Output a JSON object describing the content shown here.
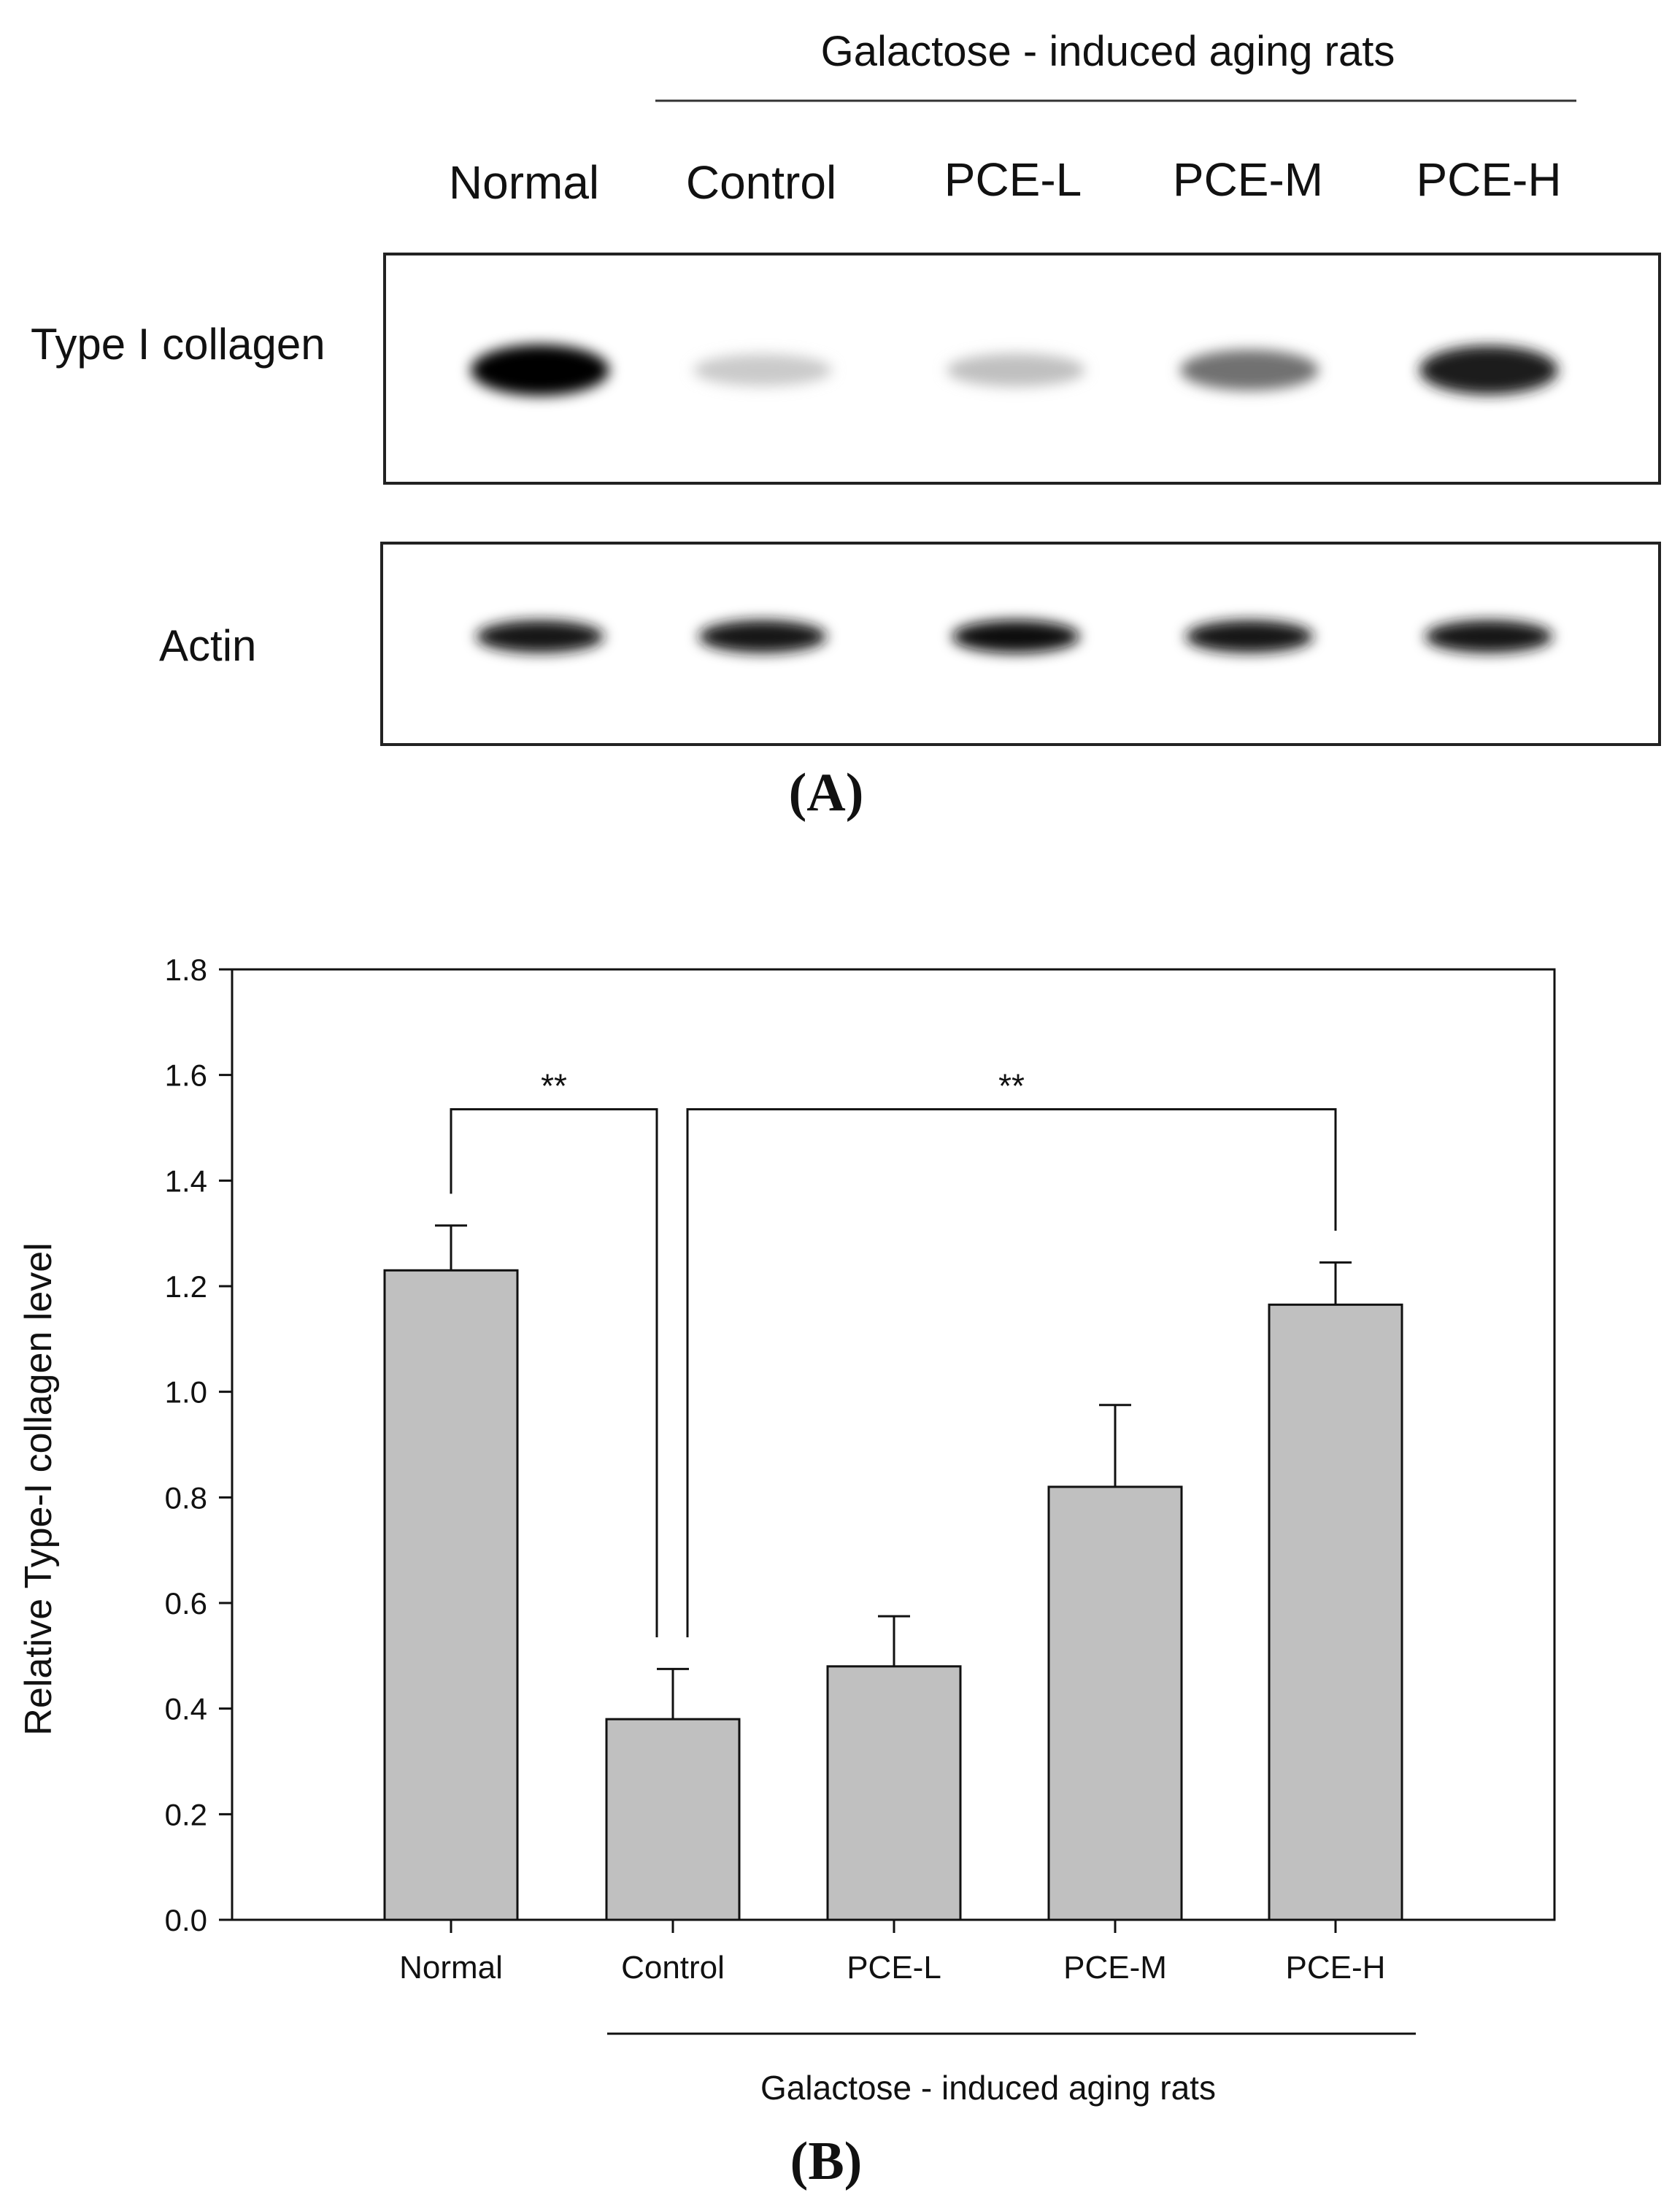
{
  "panel_a": {
    "group_label": "Galactose - induced aging rats",
    "lanes": [
      "Normal",
      "Control",
      "PCE-L",
      "PCE-M",
      "PCE-H"
    ],
    "rows": [
      {
        "label": "Type I collagen",
        "band_intensity": [
          1.0,
          0.18,
          0.22,
          0.55,
          0.9
        ]
      },
      {
        "label": "Actin",
        "band_intensity": [
          0.92,
          0.94,
          0.95,
          0.93,
          0.94
        ]
      }
    ],
    "panel_label": "(A)"
  },
  "chart_data": {
    "type": "bar",
    "categories": [
      "Normal",
      "Control",
      "PCE-L",
      "PCE-M",
      "PCE-H"
    ],
    "values": [
      1.23,
      0.38,
      0.48,
      0.82,
      1.165
    ],
    "errors": [
      0.085,
      0.095,
      0.095,
      0.155,
      0.08
    ],
    "ylabel": "Relative Type-I collagen level",
    "xlabel": "Galactose - induced aging rats",
    "ylim": [
      0,
      1.8
    ],
    "yticks": [
      "0.0",
      "0.2",
      "0.4",
      "0.6",
      "0.8",
      "1.0",
      "1.2",
      "1.4",
      "1.6",
      "1.8"
    ],
    "bar_color": "#c0c0c0",
    "significance": [
      {
        "from": "Normal",
        "to": "Control",
        "label": "**",
        "y": 1.535
      },
      {
        "from": "Control",
        "to": "PCE-H",
        "label": "**",
        "y": 1.535
      }
    ],
    "group_bracket": {
      "from": "Control",
      "to": "PCE-H"
    }
  },
  "panel_b": {
    "panel_label": "(B)"
  }
}
